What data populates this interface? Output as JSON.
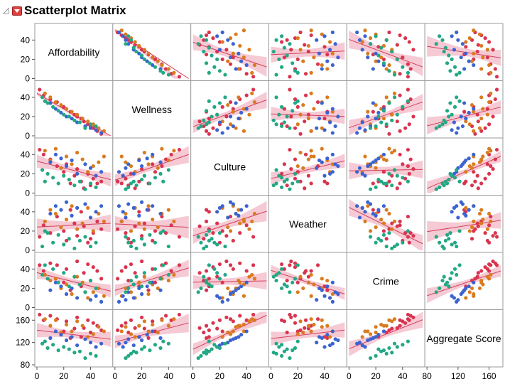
{
  "header": {
    "title": "Scatterplot Matrix"
  },
  "colors": {
    "red": "#d9344f",
    "orange": "#d97b1f",
    "blue": "#3b63d1",
    "green": "#22a884",
    "fit_line": "#d43f5a",
    "fit_band": "#f2b8c6"
  },
  "chart_data": {
    "type": "scatter",
    "title": "Scatterplot Matrix",
    "variables": [
      "Affordability",
      "Wellness",
      "Culture",
      "Weather",
      "Crime",
      "Aggregate Score"
    ],
    "ranges": [
      [
        0,
        55
      ],
      [
        0,
        55
      ],
      [
        0,
        55
      ],
      [
        0,
        55
      ],
      [
        0,
        55
      ],
      [
        80,
        175
      ]
    ],
    "ticks": [
      [
        0,
        20,
        40
      ],
      [
        0,
        20,
        40
      ],
      [
        0,
        20,
        40
      ],
      [
        0,
        20,
        40
      ],
      [
        0,
        20,
        40
      ],
      [
        80,
        120,
        160
      ]
    ],
    "y_tick_labels": [
      [
        "0",
        "20",
        "40"
      ],
      [
        "0",
        "20",
        "40"
      ],
      [
        "0",
        "20",
        "40"
      ],
      [
        "0",
        "20",
        "40"
      ],
      [
        "0",
        "20",
        "40"
      ],
      [
        "80",
        "120",
        "160"
      ]
    ],
    "x_tick_labels": [
      [
        "0",
        "20",
        "40"
      ],
      [
        "0",
        "20",
        "40"
      ],
      [
        "0",
        "20",
        "40"
      ],
      [
        "0",
        "20",
        "40"
      ],
      [
        "0",
        "20",
        "40"
      ],
      [
        "80",
        "120",
        "160"
      ]
    ],
    "group_colors": [
      "red",
      "orange",
      "blue",
      "green"
    ],
    "points": [
      {
        "g": "red",
        "v": [
          48,
          2,
          12,
          22,
          30,
          142
        ]
      },
      {
        "g": "red",
        "v": [
          45,
          5,
          10,
          30,
          38,
          150
        ]
      },
      {
        "g": "red",
        "v": [
          42,
          8,
          15,
          18,
          42,
          155
        ]
      },
      {
        "g": "red",
        "v": [
          40,
          10,
          8,
          12,
          28,
          138
        ]
      },
      {
        "g": "red",
        "v": [
          38,
          12,
          20,
          8,
          45,
          160
        ]
      },
      {
        "g": "red",
        "v": [
          35,
          15,
          5,
          25,
          36,
          146
        ]
      },
      {
        "g": "red",
        "v": [
          33,
          18,
          12,
          40,
          22,
          130
        ]
      },
      {
        "g": "red",
        "v": [
          30,
          20,
          25,
          15,
          48,
          165
        ]
      },
      {
        "g": "red",
        "v": [
          28,
          22,
          18,
          28,
          32,
          145
        ]
      },
      {
        "g": "red",
        "v": [
          25,
          25,
          10,
          42,
          18,
          128
        ]
      },
      {
        "g": "red",
        "v": [
          22,
          28,
          30,
          10,
          40,
          158
        ]
      },
      {
        "g": "red",
        "v": [
          20,
          30,
          22,
          20,
          26,
          140
        ]
      },
      {
        "g": "red",
        "v": [
          15,
          35,
          28,
          35,
          44,
          162
        ]
      },
      {
        "g": "red",
        "v": [
          10,
          38,
          35,
          18,
          46,
          168
        ]
      },
      {
        "g": "red",
        "v": [
          5,
          42,
          40,
          26,
          38,
          160
        ]
      },
      {
        "g": "red",
        "v": [
          2,
          48,
          45,
          14,
          44,
          170
        ]
      },
      {
        "g": "orange",
        "v": [
          50,
          5,
          38,
          30,
          12,
          140
        ]
      },
      {
        "g": "orange",
        "v": [
          46,
          8,
          32,
          38,
          20,
          148
        ]
      },
      {
        "g": "orange",
        "v": [
          42,
          12,
          28,
          20,
          16,
          135
        ]
      },
      {
        "g": "orange",
        "v": [
          38,
          15,
          22,
          44,
          10,
          130
        ]
      },
      {
        "g": "orange",
        "v": [
          34,
          18,
          35,
          28,
          26,
          150
        ]
      },
      {
        "g": "orange",
        "v": [
          30,
          22,
          42,
          22,
          32,
          158
        ]
      },
      {
        "g": "orange",
        "v": [
          26,
          25,
          30,
          46,
          14,
          140
        ]
      },
      {
        "g": "orange",
        "v": [
          22,
          28,
          38,
          32,
          24,
          152
        ]
      },
      {
        "g": "orange",
        "v": [
          18,
          32,
          26,
          24,
          20,
          138
        ]
      },
      {
        "g": "orange",
        "v": [
          14,
          35,
          46,
          38,
          30,
          160
        ]
      },
      {
        "g": "orange",
        "v": [
          10,
          40,
          34,
          42,
          28,
          150
        ]
      },
      {
        "g": "orange",
        "v": [
          6,
          44,
          44,
          30,
          34,
          162
        ]
      },
      {
        "g": "blue",
        "v": [
          48,
          3,
          22,
          46,
          6,
          118
        ]
      },
      {
        "g": "blue",
        "v": [
          44,
          6,
          18,
          40,
          12,
          112
        ]
      },
      {
        "g": "blue",
        "v": [
          40,
          8,
          26,
          34,
          8,
          120
        ]
      },
      {
        "g": "blue",
        "v": [
          36,
          10,
          30,
          48,
          16,
          126
        ]
      },
      {
        "g": "blue",
        "v": [
          30,
          14,
          20,
          44,
          10,
          115
        ]
      },
      {
        "g": "blue",
        "v": [
          26,
          18,
          34,
          36,
          20,
          130
        ]
      },
      {
        "g": "blue",
        "v": [
          22,
          20,
          28,
          50,
          14,
          124
        ]
      },
      {
        "g": "blue",
        "v": [
          18,
          24,
          36,
          42,
          22,
          134
        ]
      },
      {
        "g": "blue",
        "v": [
          14,
          28,
          40,
          46,
          26,
          140
        ]
      },
      {
        "g": "blue",
        "v": [
          10,
          34,
          32,
          38,
          18,
          128
        ]
      },
      {
        "g": "green",
        "v": [
          44,
          10,
          6,
          8,
          20,
          96
        ]
      },
      {
        "g": "green",
        "v": [
          40,
          12,
          10,
          4,
          28,
          100
        ]
      },
      {
        "g": "green",
        "v": [
          36,
          8,
          4,
          14,
          16,
          92
        ]
      },
      {
        "g": "green",
        "v": [
          32,
          14,
          12,
          10,
          24,
          104
        ]
      },
      {
        "g": "green",
        "v": [
          28,
          16,
          8,
          2,
          32,
          102
        ]
      },
      {
        "g": "green",
        "v": [
          24,
          20,
          14,
          12,
          22,
          108
        ]
      },
      {
        "g": "green",
        "v": [
          20,
          22,
          18,
          6,
          36,
          112
        ]
      },
      {
        "g": "green",
        "v": [
          16,
          26,
          10,
          16,
          26,
          106
        ]
      },
      {
        "g": "green",
        "v": [
          12,
          30,
          16,
          8,
          40,
          116
        ]
      },
      {
        "g": "green",
        "v": [
          8,
          34,
          20,
          18,
          30,
          110
        ]
      },
      {
        "g": "green",
        "v": [
          4,
          40,
          24,
          4,
          34,
          118
        ]
      },
      {
        "g": "green",
        "v": [
          6,
          36,
          12,
          20,
          44,
          122
        ]
      }
    ],
    "grid": false,
    "fit": "linear with confidence band"
  }
}
